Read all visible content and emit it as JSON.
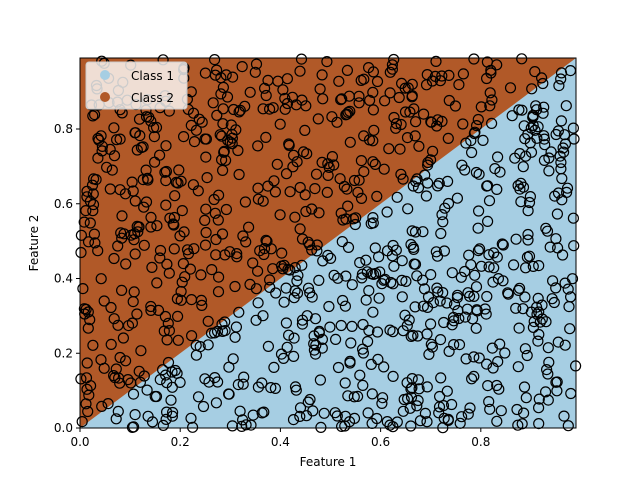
{
  "chart_data": {
    "type": "scatter",
    "xlabel": "Feature 1",
    "ylabel": "Feature 2",
    "xlim": [
      0.0,
      0.99
    ],
    "ylim": [
      0.0,
      0.99
    ],
    "xticks": [
      0.0,
      0.2,
      0.4,
      0.6,
      0.8
    ],
    "yticks": [
      0.0,
      0.2,
      0.4,
      0.6,
      0.8
    ],
    "xtick_labels": [
      "0.0",
      "0.2",
      "0.4",
      "0.6",
      "0.8"
    ],
    "ytick_labels": [
      "0.0",
      "0.2",
      "0.4",
      "0.6",
      "0.8"
    ],
    "grid": false,
    "legend": {
      "location": "top-left",
      "entries": [
        {
          "label": "Class 1",
          "color": "#a6cee3"
        },
        {
          "label": "Class 2",
          "color": "#b15928"
        }
      ]
    },
    "decision_boundary": {
      "description_free": true,
      "line": {
        "x": [
          0.0,
          0.99
        ],
        "y": [
          0.0,
          0.99
        ]
      },
      "region_below_color": "#a6cee3",
      "region_above_color": "#b15928"
    },
    "marker": {
      "shape": "open-circle",
      "edge_color": "#000000"
    },
    "points_per_class_approx": 500
  }
}
